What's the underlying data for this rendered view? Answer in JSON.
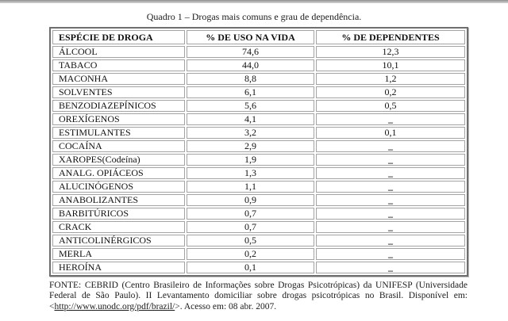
{
  "page": {
    "title": "Quadro 1 – Drogas mais comuns e grau de dependência."
  },
  "table": {
    "headers": [
      "ESPÉCIE DE DROGA",
      "% DE USO NA VIDA",
      "% DE DEPENDENTES"
    ],
    "rows": [
      {
        "name": "ÁLCOOL",
        "uso": "74,6",
        "dep": "12,3"
      },
      {
        "name": "TABACO",
        "uso": "44,0",
        "dep": "10,1"
      },
      {
        "name": "MACONHA",
        "uso": "8,8",
        "dep": "1,2"
      },
      {
        "name": "SOLVENTES",
        "uso": "6,1",
        "dep": "0,2"
      },
      {
        "name": "BENZODIAZEPÍNICOS",
        "uso": "5,6",
        "dep": "0,5"
      },
      {
        "name": "OREXÍGENOS",
        "uso": "4,1",
        "dep": "_"
      },
      {
        "name": "ESTIMULANTES",
        "uso": "3,2",
        "dep": "0,1"
      },
      {
        "name": "COCAÍNA",
        "uso": "2,9",
        "dep": "_"
      },
      {
        "name": "XAROPES(Codeína)",
        "uso": "1,9",
        "dep": "_"
      },
      {
        "name": "ANALG. OPIÁCEOS",
        "uso": "1,3",
        "dep": "_"
      },
      {
        "name": "ALUCINÓGENOS",
        "uso": "1,1",
        "dep": "_"
      },
      {
        "name": "ANABOLIZANTES",
        "uso": "0,9",
        "dep": "_"
      },
      {
        "name": "BARBITÚRICOS",
        "uso": "0,7",
        "dep": "_"
      },
      {
        "name": "CRACK",
        "uso": "0,7",
        "dep": "_"
      },
      {
        "name": "ANTICOLINÉRGICOS",
        "uso": "0,5",
        "dep": "_"
      },
      {
        "name": "MERLA",
        "uso": "0,2",
        "dep": "_"
      },
      {
        "name": "HEROÍNA",
        "uso": "0,1",
        "dep": "_"
      }
    ]
  },
  "footer": {
    "text_before_url": "FONTE: CEBRID (Centro Brasileiro de Informações sobre Drogas Psicotrópicas) da UNIFESP (Universidade Federal de São Paulo). II Levantamento domiciliar sobre drogas psicotrópicas no Brasil. Disponível em: <",
    "url": "http://www.unodc.org/pdf/brazil/",
    "text_after_url": ">. Acesso em: 08 abr. 2007."
  }
}
